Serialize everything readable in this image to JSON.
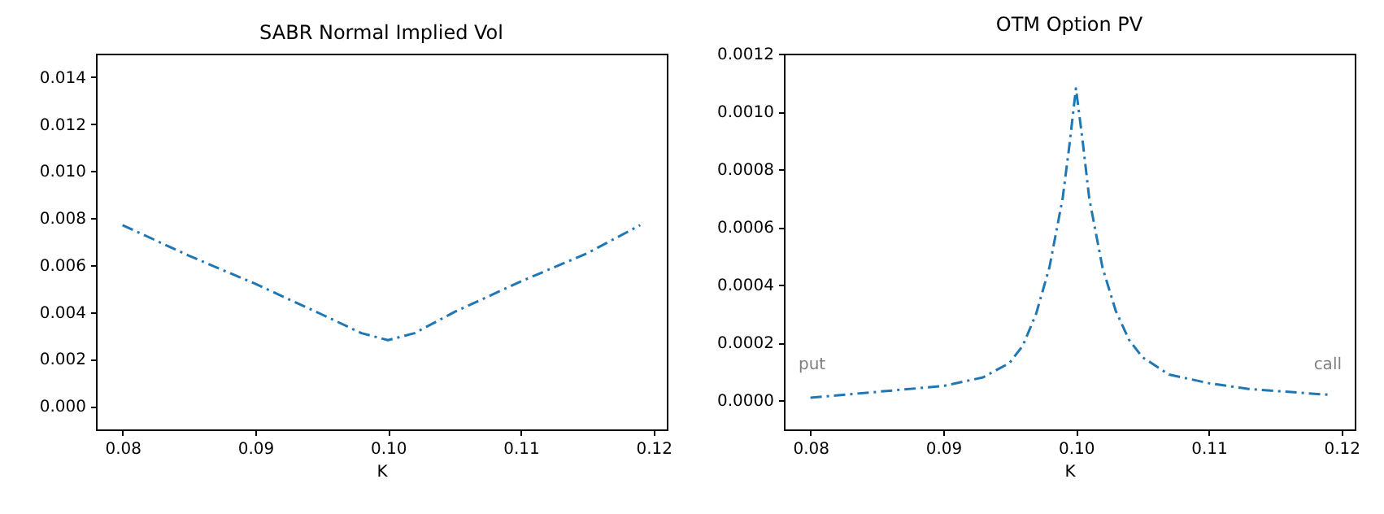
{
  "chart_data": [
    {
      "type": "line",
      "title": "SABR Normal Implied Vol",
      "xlabel": "K",
      "x": [
        0.08,
        0.085,
        0.09,
        0.095,
        0.098,
        0.1,
        0.102,
        0.105,
        0.11,
        0.115,
        0.119
      ],
      "series": [
        {
          "color": "#1f77b4",
          "values": [
            0.0077,
            0.0064,
            0.0052,
            0.0039,
            0.0031,
            0.0028,
            0.0031,
            0.004,
            0.0053,
            0.0065,
            0.0077
          ]
        }
      ],
      "xlim": [
        0.078,
        0.121
      ],
      "ylim": [
        -0.001,
        0.015
      ],
      "xticks": [
        {
          "value": 0.08,
          "label": "0.08"
        },
        {
          "value": 0.09,
          "label": "0.09"
        },
        {
          "value": 0.1,
          "label": "0.10"
        },
        {
          "value": 0.11,
          "label": "0.11"
        },
        {
          "value": 0.12,
          "label": "0.12"
        }
      ],
      "yticks": [
        {
          "value": 0,
          "label": "0.000"
        },
        {
          "value": 0.002,
          "label": "0.002"
        },
        {
          "value": 0.004,
          "label": "0.004"
        },
        {
          "value": 0.006,
          "label": "0.006"
        },
        {
          "value": 0.008,
          "label": "0.008"
        },
        {
          "value": 0.01,
          "label": "0.010"
        },
        {
          "value": 0.012,
          "label": "0.012"
        },
        {
          "value": 0.014,
          "label": "0.014"
        }
      ],
      "grid": false,
      "line_style": "dashdot"
    },
    {
      "type": "line",
      "title": "OTM Option PV",
      "xlabel": "K",
      "x": [
        0.08,
        0.085,
        0.09,
        0.093,
        0.095,
        0.096,
        0.097,
        0.098,
        0.099,
        0.0995,
        0.1,
        0.1005,
        0.101,
        0.102,
        0.103,
        0.104,
        0.105,
        0.107,
        0.11,
        0.113,
        0.116,
        0.119
      ],
      "series": [
        {
          "color": "#1f77b4",
          "values": [
            1e-05,
            3e-05,
            5e-05,
            8e-05,
            0.00013,
            0.00019,
            0.0003,
            0.00046,
            0.0007,
            0.00088,
            0.00108,
            0.0009,
            0.0007,
            0.00046,
            0.00031,
            0.00021,
            0.00015,
            9e-05,
            6e-05,
            4e-05,
            3e-05,
            2e-05
          ]
        }
      ],
      "xlim": [
        0.078,
        0.121
      ],
      "ylim": [
        -0.0001,
        0.0012
      ],
      "xticks": [
        {
          "value": 0.08,
          "label": "0.08"
        },
        {
          "value": 0.09,
          "label": "0.09"
        },
        {
          "value": 0.1,
          "label": "0.10"
        },
        {
          "value": 0.11,
          "label": "0.11"
        },
        {
          "value": 0.12,
          "label": "0.12"
        }
      ],
      "yticks": [
        {
          "value": 0,
          "label": "0.0000"
        },
        {
          "value": 0.0002,
          "label": "0.0002"
        },
        {
          "value": 0.0004,
          "label": "0.0004"
        },
        {
          "value": 0.0006,
          "label": "0.0006"
        },
        {
          "value": 0.0008,
          "label": "0.0008"
        },
        {
          "value": 0.001,
          "label": "0.0010"
        },
        {
          "value": 0.0012,
          "label": "0.0012"
        }
      ],
      "annotations": [
        "put",
        "call"
      ],
      "grid": false,
      "line_style": "dashdot"
    }
  ]
}
